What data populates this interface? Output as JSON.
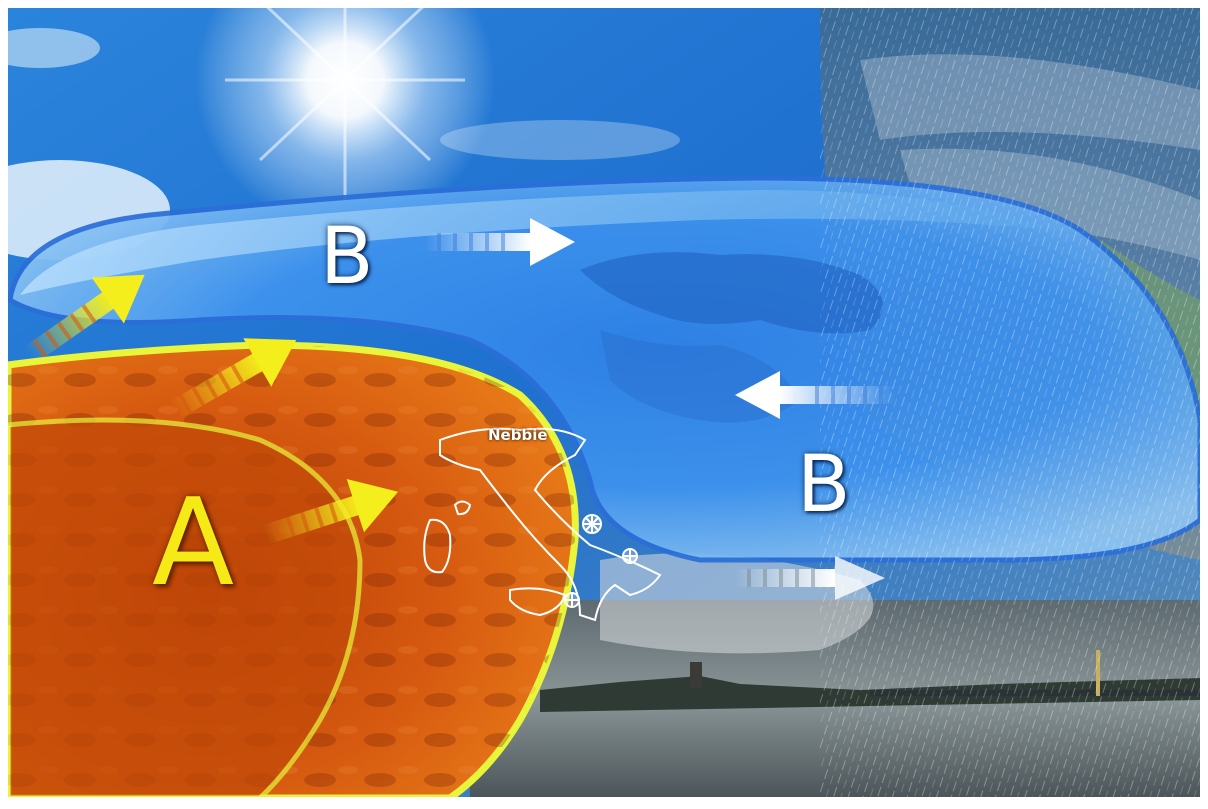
{
  "map": {
    "low_pressure_label_1": "B",
    "low_pressure_label_2": "B",
    "high_pressure_label": "A",
    "fog_label": "Nebbie"
  },
  "icons": [
    "sun-icon",
    "snowflake-icon",
    "wind-arrow-icon",
    "rain-streaks"
  ],
  "colors": {
    "low_pressure_zone": "#3d8ff0",
    "high_pressure_zone": "#d65a10",
    "high_pressure_border": "#e8f53a",
    "warm_arrow": "#f4ee1c",
    "cold_arrow": "#ffffff",
    "sky": "#1f6fd1"
  }
}
